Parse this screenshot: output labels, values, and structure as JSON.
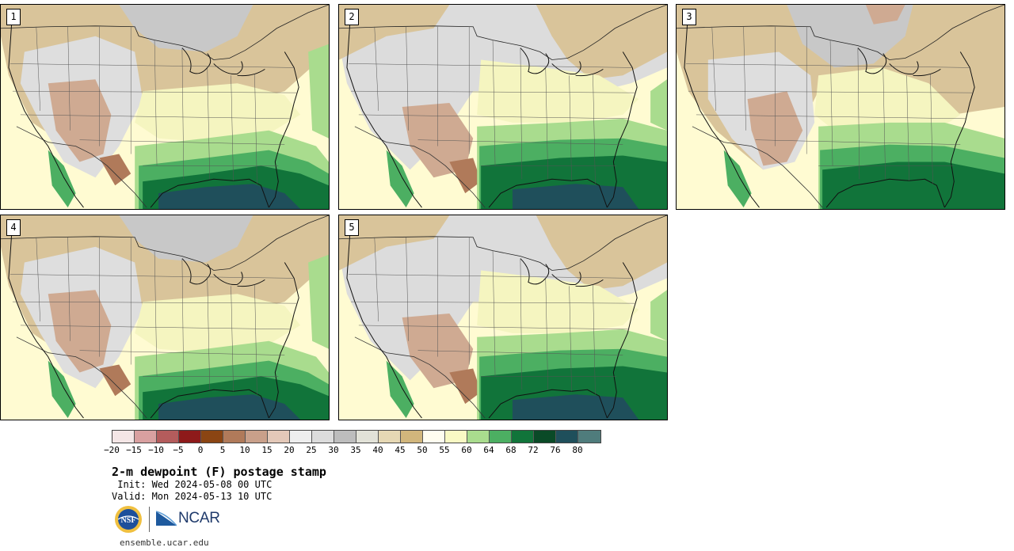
{
  "panels": [
    {
      "label": "1"
    },
    {
      "label": "2"
    },
    {
      "label": "3"
    },
    {
      "label": "4"
    },
    {
      "label": "5"
    }
  ],
  "colorbar": {
    "colors": [
      "#f4e6e6",
      "#d9a0a0",
      "#b45c5c",
      "#8e1a1a",
      "#8b4513",
      "#b07a5a",
      "#c9a08a",
      "#e3c8b8",
      "#eeeeee",
      "#dcdcdc",
      "#bdbdbd",
      "#e2e2d8",
      "#e6d8b4",
      "#d1b67c",
      "#fffdf0",
      "#f9f9c4",
      "#a9dc8e",
      "#4caf62",
      "#11743a",
      "#0a4a27",
      "#1f4f5b",
      "#4f7c7c"
    ],
    "tick_labels": [
      "−20",
      "−15",
      "−10",
      "−5",
      "0",
      "5",
      "10",
      "15",
      "20",
      "25",
      "30",
      "35",
      "40",
      "45",
      "50",
      "55",
      "60",
      "64",
      "68",
      "72",
      "76",
      "80"
    ]
  },
  "title": "2-m dewpoint (F) postage stamp",
  "init": " Init: Wed 2024-05-08 00 UTC",
  "valid": "Valid: Mon 2024-05-13 10 UTC",
  "logos": {
    "nsf": "NSF",
    "ncar": "NCAR"
  },
  "site": "ensemble.ucar.edu"
}
